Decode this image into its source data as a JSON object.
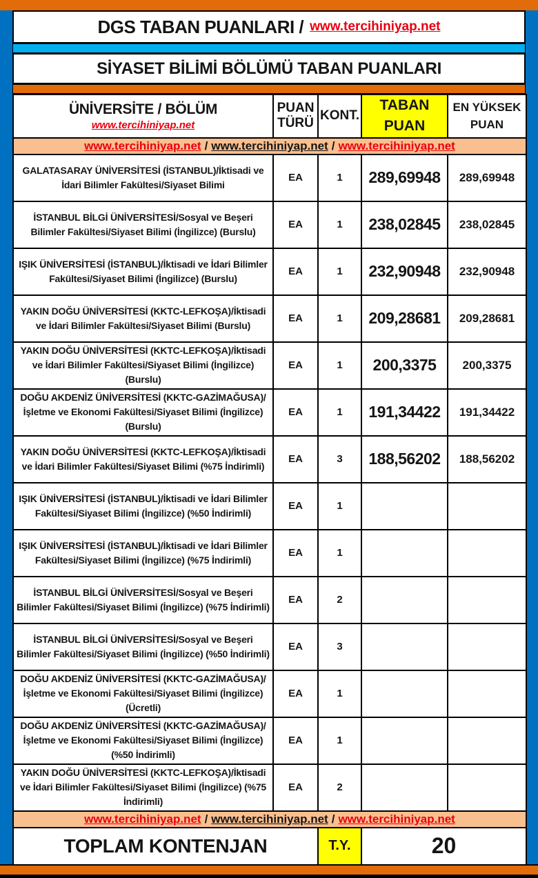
{
  "page": {
    "title_black": "DGS TABAN PUANLARI /",
    "title_link": "www.tercihiniyap.net",
    "subtitle": "SİYASET BİLİMİ BÖLÜMÜ TABAN PUANLARI"
  },
  "colors": {
    "frame_blue": "#0070C0",
    "bar_orange": "#E26B0A",
    "bar_cyan": "#00B0F0",
    "highlight_yellow": "#FFFF00",
    "promo_peach": "#FABF8F",
    "link_red": "#E8000F"
  },
  "table": {
    "headers": {
      "col1": "ÜNİVERSİTE / BÖLÜM",
      "col1_link": "www.tercihiniyap.net",
      "col2": "PUAN TÜRÜ",
      "col3": "KONT.",
      "col4": "TABAN PUAN",
      "col5": "EN YÜKSEK PUAN"
    },
    "promo": {
      "link": "www.tercihiniyap.net",
      "separator": "/"
    },
    "rows": [
      {
        "university": "GALATASARAY ÜNİVERSİTESİ (İSTANBUL)/İktisadi ve İdari Bilimler Fakültesi/Siyaset Bilimi",
        "puan_turu": "EA",
        "kontenjan": "1",
        "taban_puan": "289,69948",
        "en_yuksek_puan": "289,69948"
      },
      {
        "university": "İSTANBUL BİLGİ ÜNİVERSİTESİ/Sosyal ve Beşeri Bilimler Fakültesi/Siyaset Bilimi (İngilizce) (Burslu)",
        "puan_turu": "EA",
        "kontenjan": "1",
        "taban_puan": "238,02845",
        "en_yuksek_puan": "238,02845"
      },
      {
        "university": "IŞIK ÜNİVERSİTESİ (İSTANBUL)/İktisadi ve İdari Bilimler Fakültesi/Siyaset Bilimi (İngilizce) (Burslu)",
        "puan_turu": "EA",
        "kontenjan": "1",
        "taban_puan": "232,90948",
        "en_yuksek_puan": "232,90948"
      },
      {
        "university": "YAKIN DOĞU ÜNİVERSİTESİ (KKTC-LEFKOŞA)/İktisadi ve İdari Bilimler Fakültesi/Siyaset Bilimi (Burslu)",
        "puan_turu": "EA",
        "kontenjan": "1",
        "taban_puan": "209,28681",
        "en_yuksek_puan": "209,28681"
      },
      {
        "university": "YAKIN DOĞU ÜNİVERSİTESİ (KKTC-LEFKOŞA)/İktisadi ve İdari Bilimler Fakültesi/Siyaset Bilimi (İngilizce) (Burslu)",
        "puan_turu": "EA",
        "kontenjan": "1",
        "taban_puan": "200,3375",
        "en_yuksek_puan": "200,3375"
      },
      {
        "university": "DOĞU AKDENİZ ÜNİVERSİTESİ (KKTC-GAZİMAĞUSA)/İşletme ve Ekonomi Fakültesi/Siyaset Bilimi (İngilizce) (Burslu)",
        "puan_turu": "EA",
        "kontenjan": "1",
        "taban_puan": "191,34422",
        "en_yuksek_puan": "191,34422"
      },
      {
        "university": "YAKIN DOĞU ÜNİVERSİTESİ (KKTC-LEFKOŞA)/İktisadi ve İdari Bilimler Fakültesi/Siyaset Bilimi (%75 İndirimli)",
        "puan_turu": "EA",
        "kontenjan": "3",
        "taban_puan": "188,56202",
        "en_yuksek_puan": "188,56202"
      },
      {
        "university": "IŞIK ÜNİVERSİTESİ (İSTANBUL)/İktisadi ve İdari Bilimler Fakültesi/Siyaset Bilimi (İngilizce) (%50 İndirimli)",
        "puan_turu": "EA",
        "kontenjan": "1",
        "taban_puan": "",
        "en_yuksek_puan": ""
      },
      {
        "university": "IŞIK ÜNİVERSİTESİ (İSTANBUL)/İktisadi ve İdari Bilimler Fakültesi/Siyaset Bilimi (İngilizce) (%75 İndirimli)",
        "puan_turu": "EA",
        "kontenjan": "1",
        "taban_puan": "",
        "en_yuksek_puan": ""
      },
      {
        "university": "İSTANBUL BİLGİ ÜNİVERSİTESİ/Sosyal ve Beşeri Bilimler Fakültesi/Siyaset Bilimi (İngilizce) (%75 İndirimli)",
        "puan_turu": "EA",
        "kontenjan": "2",
        "taban_puan": "",
        "en_yuksek_puan": ""
      },
      {
        "university": "İSTANBUL BİLGİ ÜNİVERSİTESİ/Sosyal ve Beşeri Bilimler Fakültesi/Siyaset Bilimi (İngilizce) (%50 İndirimli)",
        "puan_turu": "EA",
        "kontenjan": "3",
        "taban_puan": "",
        "en_yuksek_puan": ""
      },
      {
        "university": "DOĞU AKDENİZ ÜNİVERSİTESİ (KKTC-GAZİMAĞUSA)/İşletme ve Ekonomi Fakültesi/Siyaset Bilimi (İngilizce) (Ücretli)",
        "puan_turu": "EA",
        "kontenjan": "1",
        "taban_puan": "",
        "en_yuksek_puan": ""
      },
      {
        "university": "DOĞU AKDENİZ ÜNİVERSİTESİ (KKTC-GAZİMAĞUSA)/İşletme ve Ekonomi Fakültesi/Siyaset Bilimi (İngilizce) (%50 İndirimli)",
        "puan_turu": "EA",
        "kontenjan": "1",
        "taban_puan": "",
        "en_yuksek_puan": ""
      },
      {
        "university": "YAKIN DOĞU ÜNİVERSİTESİ (KKTC-LEFKOŞA)/İktisadi ve İdari Bilimler Fakültesi/Siyaset Bilimi (İngilizce) (%75 İndirimli)",
        "puan_turu": "EA",
        "kontenjan": "2",
        "taban_puan": "",
        "en_yuksek_puan": ""
      }
    ],
    "footer": {
      "label": "TOPLAM KONTENJAN",
      "type_badge": "T.Y.",
      "total": "20"
    }
  }
}
